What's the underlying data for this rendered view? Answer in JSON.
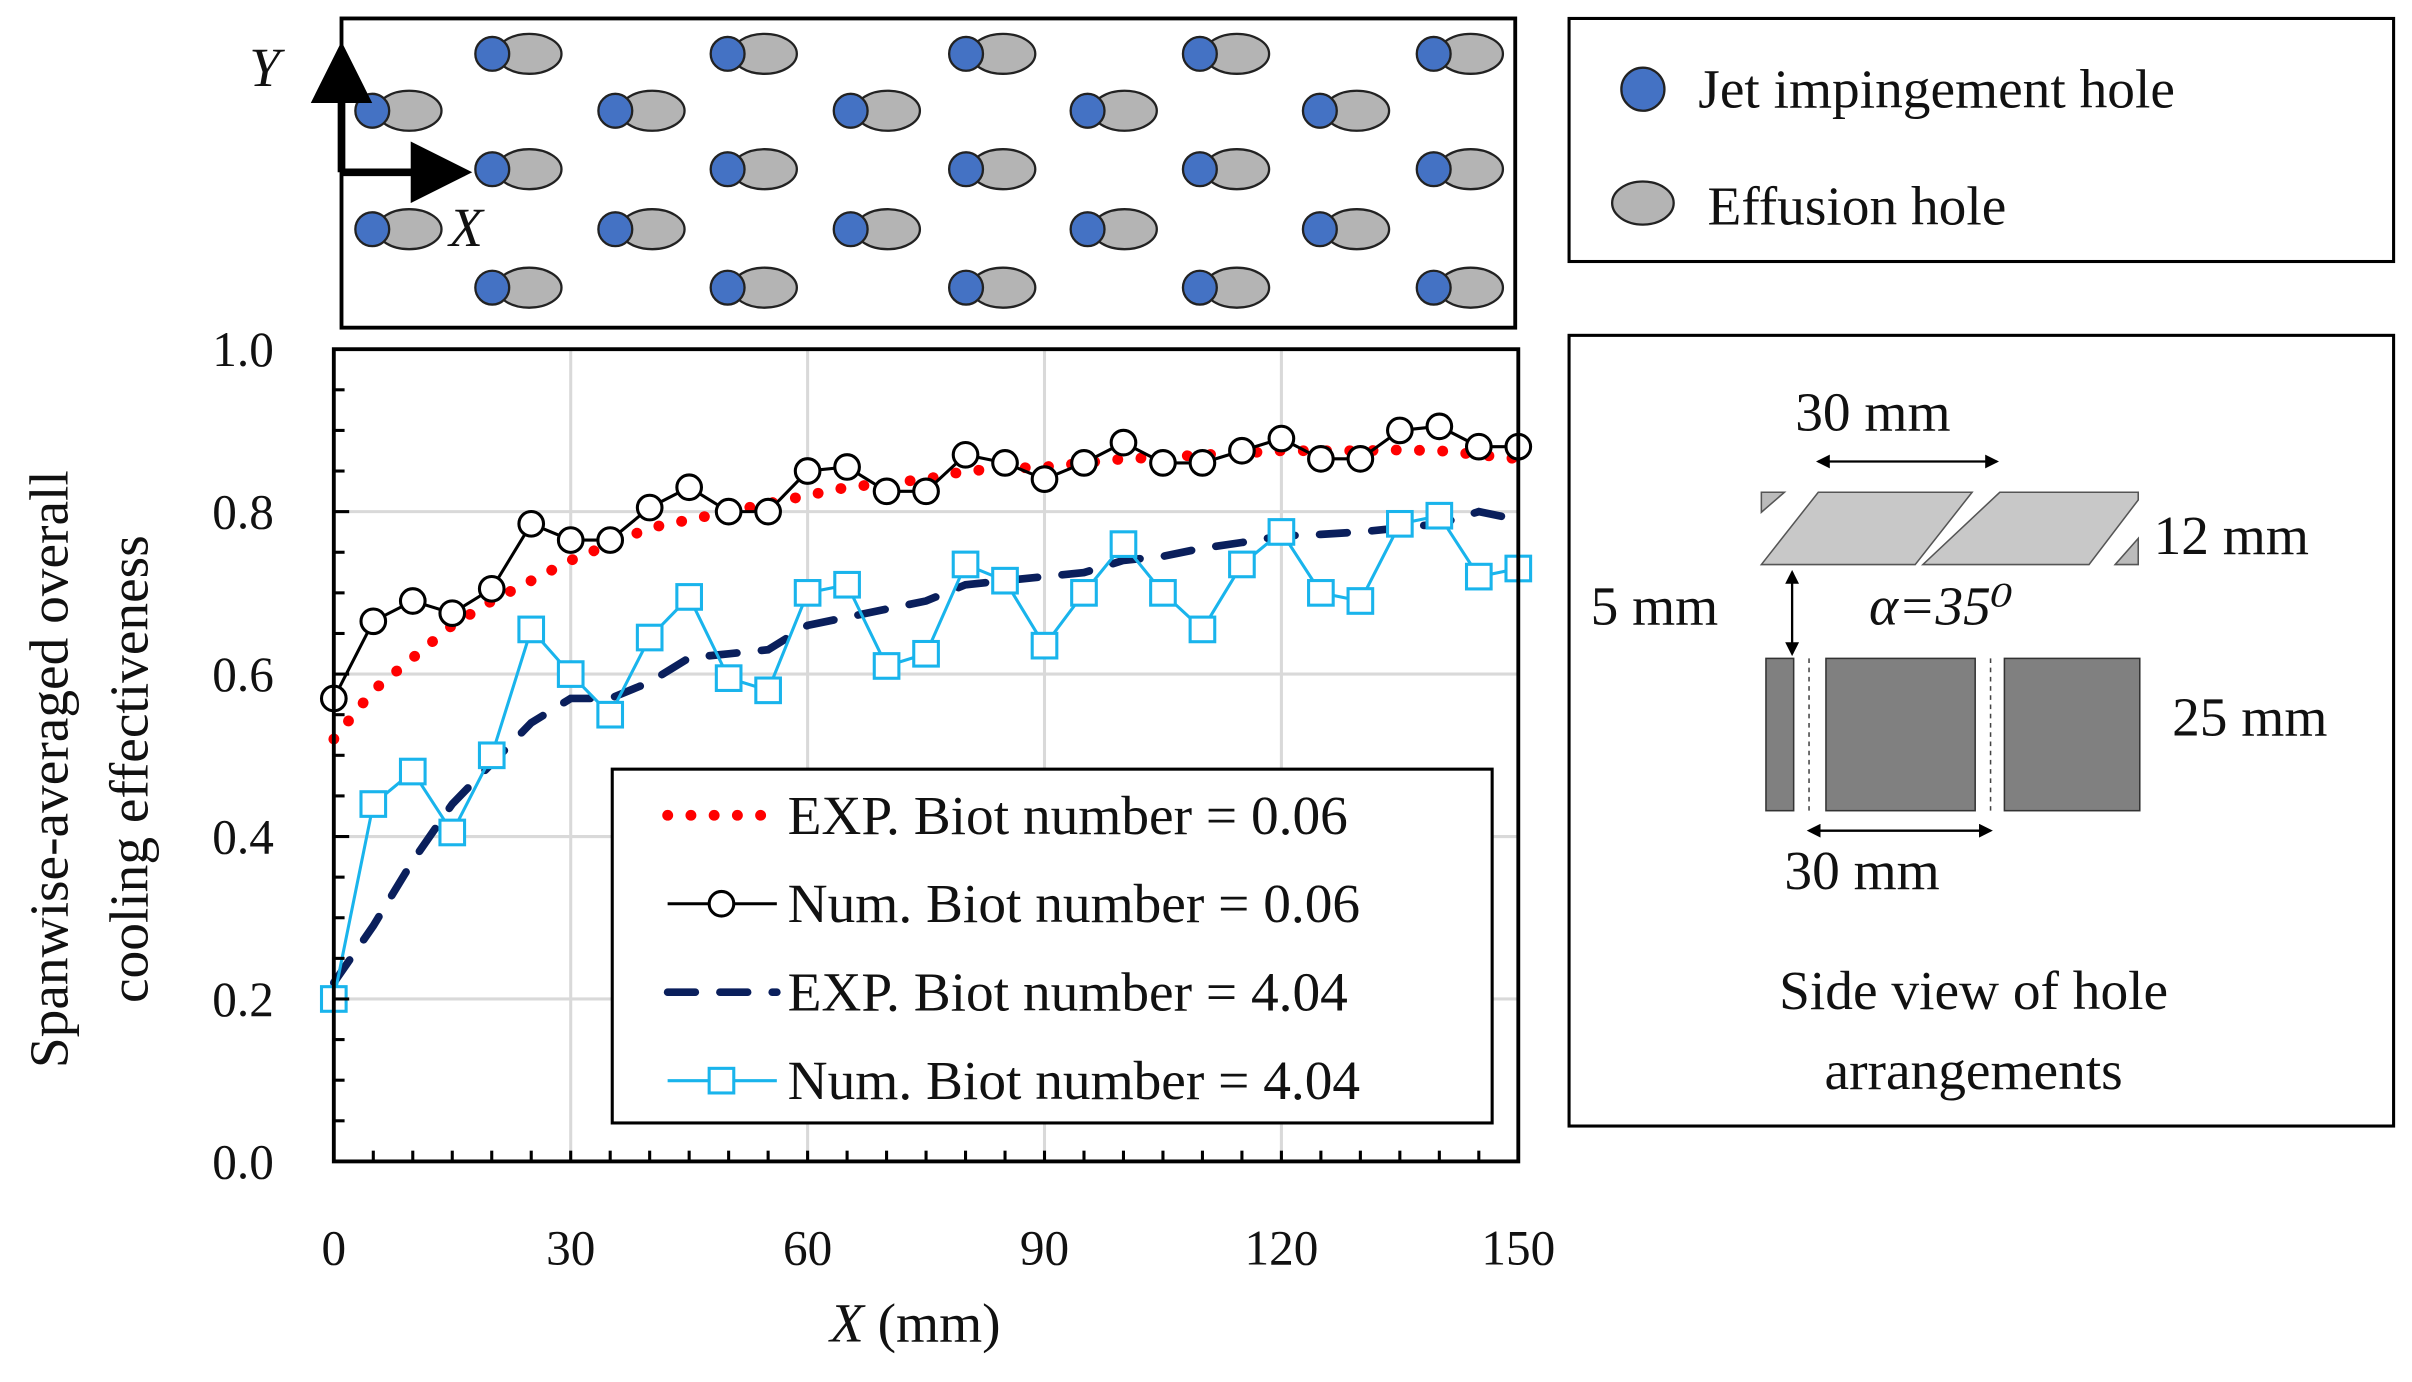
{
  "chart_data": {
    "type": "line",
    "xlabel_var": "X",
    "xlabel_unit": " (mm)",
    "ylabel_line1": "Spanwise-averaged overall",
    "ylabel_line2": "cooling effectiveness",
    "xlim": [
      0,
      150
    ],
    "ylim": [
      0,
      1.0
    ],
    "xticks": [
      "0",
      "30",
      "60",
      "90",
      "120",
      "150"
    ],
    "yticks": [
      "0.0",
      "0.2",
      "0.4",
      "0.6",
      "0.8",
      "1.0"
    ],
    "grid": true,
    "legend_position": "bottom-right",
    "series": [
      {
        "name": "EXP. Biot number = 0.06",
        "style": "dotted",
        "color": "#ff0000",
        "x": [
          0,
          5,
          10,
          15,
          20,
          25,
          30,
          35,
          40,
          45,
          50,
          55,
          60,
          65,
          70,
          75,
          80,
          85,
          90,
          95,
          100,
          105,
          110,
          115,
          120,
          125,
          130,
          135,
          140,
          145,
          150
        ],
        "y": [
          0.52,
          0.58,
          0.62,
          0.66,
          0.69,
          0.715,
          0.74,
          0.76,
          0.78,
          0.79,
          0.8,
          0.81,
          0.82,
          0.83,
          0.835,
          0.84,
          0.85,
          0.853,
          0.855,
          0.86,
          0.865,
          0.867,
          0.87,
          0.872,
          0.875,
          0.875,
          0.875,
          0.876,
          0.875,
          0.87,
          0.865
        ]
      },
      {
        "name": "Num. Biot number = 0.06",
        "style": "circle",
        "color": "#000000",
        "x": [
          0,
          5,
          10,
          15,
          20,
          25,
          30,
          35,
          40,
          45,
          50,
          55,
          60,
          65,
          70,
          75,
          80,
          85,
          90,
          95,
          100,
          105,
          110,
          115,
          120,
          125,
          130,
          135,
          140,
          145,
          150
        ],
        "y": [
          0.57,
          0.665,
          0.69,
          0.675,
          0.705,
          0.785,
          0.765,
          0.765,
          0.805,
          0.83,
          0.8,
          0.8,
          0.85,
          0.855,
          0.825,
          0.825,
          0.87,
          0.86,
          0.84,
          0.86,
          0.885,
          0.86,
          0.86,
          0.875,
          0.89,
          0.865,
          0.865,
          0.9,
          0.905,
          0.88,
          0.88
        ]
      },
      {
        "name": "EXP. Biot number = 4.04",
        "style": "dashed",
        "color": "#0a1f5c",
        "x": [
          0,
          5,
          10,
          15,
          20,
          25,
          30,
          35,
          40,
          45,
          50,
          55,
          60,
          65,
          70,
          75,
          80,
          85,
          90,
          95,
          100,
          105,
          110,
          115,
          120,
          125,
          130,
          135,
          140,
          145,
          150
        ],
        "y": [
          0.22,
          0.29,
          0.37,
          0.44,
          0.49,
          0.54,
          0.57,
          0.57,
          0.59,
          0.62,
          0.625,
          0.63,
          0.66,
          0.67,
          0.68,
          0.69,
          0.71,
          0.715,
          0.72,
          0.725,
          0.74,
          0.745,
          0.755,
          0.762,
          0.77,
          0.772,
          0.775,
          0.78,
          0.785,
          0.8,
          0.79
        ]
      },
      {
        "name": "Num. Biot number = 4.04",
        "style": "square",
        "color": "#19b4ec",
        "x": [
          0,
          5,
          10,
          15,
          20,
          25,
          30,
          35,
          40,
          45,
          50,
          55,
          60,
          65,
          70,
          75,
          80,
          85,
          90,
          95,
          100,
          105,
          110,
          115,
          120,
          125,
          130,
          135,
          140,
          145,
          150
        ],
        "y": [
          0.2,
          0.44,
          0.48,
          0.405,
          0.5,
          0.655,
          0.6,
          0.55,
          0.645,
          0.695,
          0.595,
          0.58,
          0.7,
          0.71,
          0.61,
          0.625,
          0.735,
          0.715,
          0.635,
          0.7,
          0.76,
          0.7,
          0.655,
          0.735,
          0.775,
          0.7,
          0.69,
          0.785,
          0.795,
          0.72,
          0.73
        ]
      }
    ]
  },
  "top_view": {
    "axis_y": "Y",
    "axis_x": "X",
    "jet_color": "#4472c4",
    "effusion_color": "#b4b4b4"
  },
  "hole_legend": {
    "jet": "Jet impingement  hole",
    "effusion": "Effusion  hole"
  },
  "side_view": {
    "dim_top": "30 mm",
    "dim_thick": "12 mm",
    "dim_gap": "5 mm",
    "angle": "α=35⁰",
    "dim_plate": "25 mm",
    "dim_bottom": "30 mm",
    "caption_line1": "Side view of hole",
    "caption_line2": "arrangements"
  }
}
